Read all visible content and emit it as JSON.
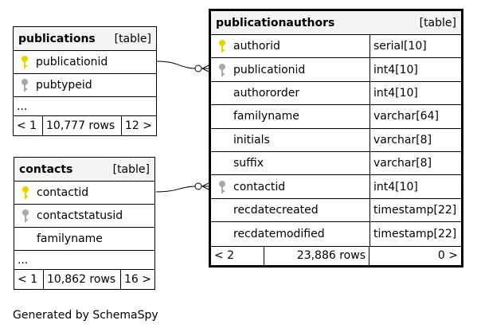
{
  "tables": {
    "publications": {
      "name": "publications",
      "tag": "[table]",
      "columns": [
        {
          "name": "publicationid",
          "key": "primary"
        },
        {
          "name": "pubtypeid",
          "key": "foreign"
        }
      ],
      "ellipsis": "...",
      "footer": {
        "left": "< 1",
        "rows": "10,777 rows",
        "right": "12 >"
      }
    },
    "contacts": {
      "name": "contacts",
      "tag": "[table]",
      "columns": [
        {
          "name": "contactid",
          "key": "primary"
        },
        {
          "name": "contactstatusid",
          "key": "foreign"
        },
        {
          "name": "familyname",
          "key": ""
        }
      ],
      "ellipsis": "...",
      "footer": {
        "left": "< 1",
        "rows": "10,862 rows",
        "right": "16 >"
      }
    },
    "publicationauthors": {
      "name": "publicationauthors",
      "tag": "[table]",
      "columns": [
        {
          "name": "authorid",
          "type": "serial[10]",
          "key": "primary"
        },
        {
          "name": "publicationid",
          "type": "int4[10]",
          "key": "foreign"
        },
        {
          "name": "authororder",
          "type": "int4[10]",
          "key": ""
        },
        {
          "name": "familyname",
          "type": "varchar[64]",
          "key": ""
        },
        {
          "name": "initials",
          "type": "varchar[8]",
          "key": ""
        },
        {
          "name": "suffix",
          "type": "varchar[8]",
          "key": ""
        },
        {
          "name": "contactid",
          "type": "int4[10]",
          "key": "foreign"
        },
        {
          "name": "recdatecreated",
          "type": "timestamp[22]",
          "key": ""
        },
        {
          "name": "recdatemodified",
          "type": "timestamp[22]",
          "key": ""
        }
      ],
      "footer": {
        "left": "< 2",
        "rows": "23,886 rows",
        "right": "0 >"
      }
    }
  },
  "colors": {
    "primary_key": "#e6d400",
    "foreign_key": "#a8a8a8",
    "header_bg": "#f4f4f4"
  },
  "generated_by": "Generated by SchemaSpy"
}
